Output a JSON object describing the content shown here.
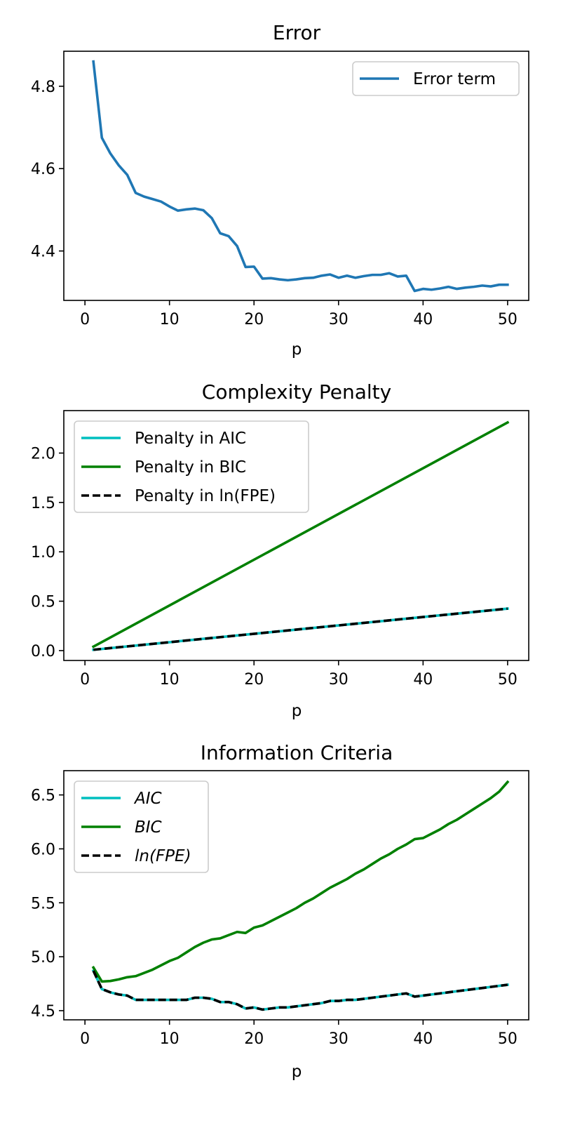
{
  "chart_data": [
    {
      "type": "line",
      "title": "Error",
      "xlabel": "p",
      "ylabel": "",
      "xlim": [
        -2.5,
        52.5
      ],
      "ylim": [
        4.28,
        4.885
      ],
      "xticks": [
        0,
        10,
        20,
        30,
        40,
        50
      ],
      "yticks": [
        4.4,
        4.6,
        4.8
      ],
      "ytick_labels": [
        "4.4",
        "4.6",
        "4.8"
      ],
      "legend_position": "upper right",
      "series": [
        {
          "name": "Error term",
          "color": "#1f77b4",
          "style": "solid",
          "x": [
            1,
            2,
            3,
            4,
            5,
            6,
            7,
            8,
            9,
            10,
            11,
            12,
            13,
            14,
            15,
            16,
            17,
            18,
            19,
            20,
            21,
            22,
            23,
            24,
            25,
            26,
            27,
            28,
            29,
            30,
            31,
            32,
            33,
            34,
            35,
            36,
            37,
            38,
            39,
            40,
            41,
            42,
            43,
            44,
            45,
            46,
            47,
            48,
            49,
            50
          ],
          "y": [
            4.86,
            4.675,
            4.637,
            4.608,
            4.585,
            4.541,
            4.532,
            4.526,
            4.52,
            4.508,
            4.498,
            4.501,
            4.503,
            4.499,
            4.48,
            4.443,
            4.436,
            4.412,
            4.361,
            4.362,
            4.333,
            4.334,
            4.331,
            4.329,
            4.331,
            4.334,
            4.335,
            4.34,
            4.343,
            4.335,
            4.34,
            4.335,
            4.339,
            4.342,
            4.342,
            4.346,
            4.338,
            4.34,
            4.303,
            4.308,
            4.306,
            4.309,
            4.313,
            4.308,
            4.311,
            4.313,
            4.316,
            4.314,
            4.318,
            4.318
          ]
        }
      ]
    },
    {
      "type": "line",
      "title": "Complexity Penalty",
      "xlabel": "p",
      "ylabel": "",
      "xlim": [
        -2.5,
        52.5
      ],
      "ylim": [
        -0.1,
        2.43
      ],
      "xticks": [
        0,
        10,
        20,
        30,
        40,
        50
      ],
      "yticks": [
        0.0,
        0.5,
        1.0,
        1.5,
        2.0
      ],
      "ytick_labels": [
        "0.0",
        "0.5",
        "1.0",
        "1.5",
        "2.0"
      ],
      "legend_position": "upper left",
      "series": [
        {
          "name": "Penalty in AIC",
          "color": "#00bfbf",
          "style": "solid",
          "x": [
            1,
            50
          ],
          "y": [
            0.0085,
            0.425
          ]
        },
        {
          "name": "Penalty in BIC",
          "color": "#008000",
          "style": "solid",
          "x": [
            1,
            50
          ],
          "y": [
            0.04,
            2.31
          ]
        },
        {
          "name": "Penalty in ln(FPE)",
          "color": "#000000",
          "style": "dashed",
          "x": [
            1,
            50
          ],
          "y": [
            0.0085,
            0.425
          ]
        }
      ]
    },
    {
      "type": "line",
      "title": "Information Criteria",
      "xlabel": "p",
      "ylabel": "",
      "xlim": [
        -2.5,
        52.5
      ],
      "ylim": [
        4.415,
        6.725
      ],
      "xticks": [
        0,
        10,
        20,
        30,
        40,
        50
      ],
      "yticks": [
        4.5,
        5.0,
        5.5,
        6.0,
        6.5
      ],
      "ytick_labels": [
        "4.5",
        "5.0",
        "5.5",
        "6.0",
        "6.5"
      ],
      "legend_position": "upper left",
      "series": [
        {
          "name": "AIC",
          "color": "#00bfbf",
          "style": "solid",
          "x": [
            1,
            2,
            3,
            4,
            5,
            6,
            7,
            8,
            9,
            10,
            11,
            12,
            13,
            14,
            15,
            16,
            17,
            18,
            19,
            20,
            21,
            22,
            23,
            24,
            25,
            26,
            27,
            28,
            29,
            30,
            31,
            32,
            33,
            34,
            35,
            36,
            37,
            38,
            39,
            40,
            41,
            42,
            43,
            44,
            45,
            46,
            47,
            48,
            49,
            50
          ],
          "y": [
            4.87,
            4.7,
            4.67,
            4.65,
            4.64,
            4.6,
            4.6,
            4.6,
            4.6,
            4.6,
            4.6,
            4.6,
            4.62,
            4.62,
            4.61,
            4.58,
            4.58,
            4.56,
            4.52,
            4.53,
            4.51,
            4.52,
            4.53,
            4.53,
            4.54,
            4.55,
            4.56,
            4.57,
            4.59,
            4.59,
            4.6,
            4.6,
            4.61,
            4.62,
            4.63,
            4.64,
            4.65,
            4.66,
            4.63,
            4.64,
            4.65,
            4.66,
            4.67,
            4.68,
            4.69,
            4.7,
            4.71,
            4.72,
            4.73,
            4.74
          ]
        },
        {
          "name": "BIC",
          "color": "#008000",
          "style": "solid",
          "x": [
            1,
            2,
            3,
            4,
            5,
            6,
            7,
            8,
            9,
            10,
            11,
            12,
            13,
            14,
            15,
            16,
            17,
            18,
            19,
            20,
            21,
            22,
            23,
            24,
            25,
            26,
            27,
            28,
            29,
            30,
            31,
            32,
            33,
            34,
            35,
            36,
            37,
            38,
            39,
            40,
            41,
            42,
            43,
            44,
            45,
            46,
            47,
            48,
            49,
            50
          ],
          "y": [
            4.9,
            4.77,
            4.775,
            4.79,
            4.81,
            4.82,
            4.85,
            4.88,
            4.92,
            4.96,
            4.99,
            5.04,
            5.09,
            5.13,
            5.16,
            5.17,
            5.2,
            5.23,
            5.22,
            5.27,
            5.29,
            5.33,
            5.37,
            5.41,
            5.45,
            5.5,
            5.54,
            5.59,
            5.64,
            5.68,
            5.72,
            5.77,
            5.81,
            5.86,
            5.91,
            5.95,
            6.0,
            6.04,
            6.09,
            6.1,
            6.14,
            6.18,
            6.23,
            6.27,
            6.32,
            6.37,
            6.42,
            6.47,
            6.53,
            6.62
          ]
        },
        {
          "name": "ln(FPE)",
          "color": "#000000",
          "style": "dashed",
          "x": [
            1,
            2,
            3,
            4,
            5,
            6,
            7,
            8,
            9,
            10,
            11,
            12,
            13,
            14,
            15,
            16,
            17,
            18,
            19,
            20,
            21,
            22,
            23,
            24,
            25,
            26,
            27,
            28,
            29,
            30,
            31,
            32,
            33,
            34,
            35,
            36,
            37,
            38,
            39,
            40,
            41,
            42,
            43,
            44,
            45,
            46,
            47,
            48,
            49,
            50
          ],
          "y": [
            4.87,
            4.7,
            4.67,
            4.65,
            4.64,
            4.6,
            4.6,
            4.6,
            4.6,
            4.6,
            4.6,
            4.6,
            4.62,
            4.62,
            4.61,
            4.58,
            4.58,
            4.56,
            4.52,
            4.53,
            4.51,
            4.52,
            4.53,
            4.53,
            4.54,
            4.55,
            4.56,
            4.57,
            4.59,
            4.59,
            4.6,
            4.6,
            4.61,
            4.62,
            4.63,
            4.64,
            4.65,
            4.66,
            4.63,
            4.64,
            4.65,
            4.66,
            4.67,
            4.68,
            4.69,
            4.7,
            4.71,
            4.72,
            4.73,
            4.74
          ]
        }
      ]
    }
  ]
}
